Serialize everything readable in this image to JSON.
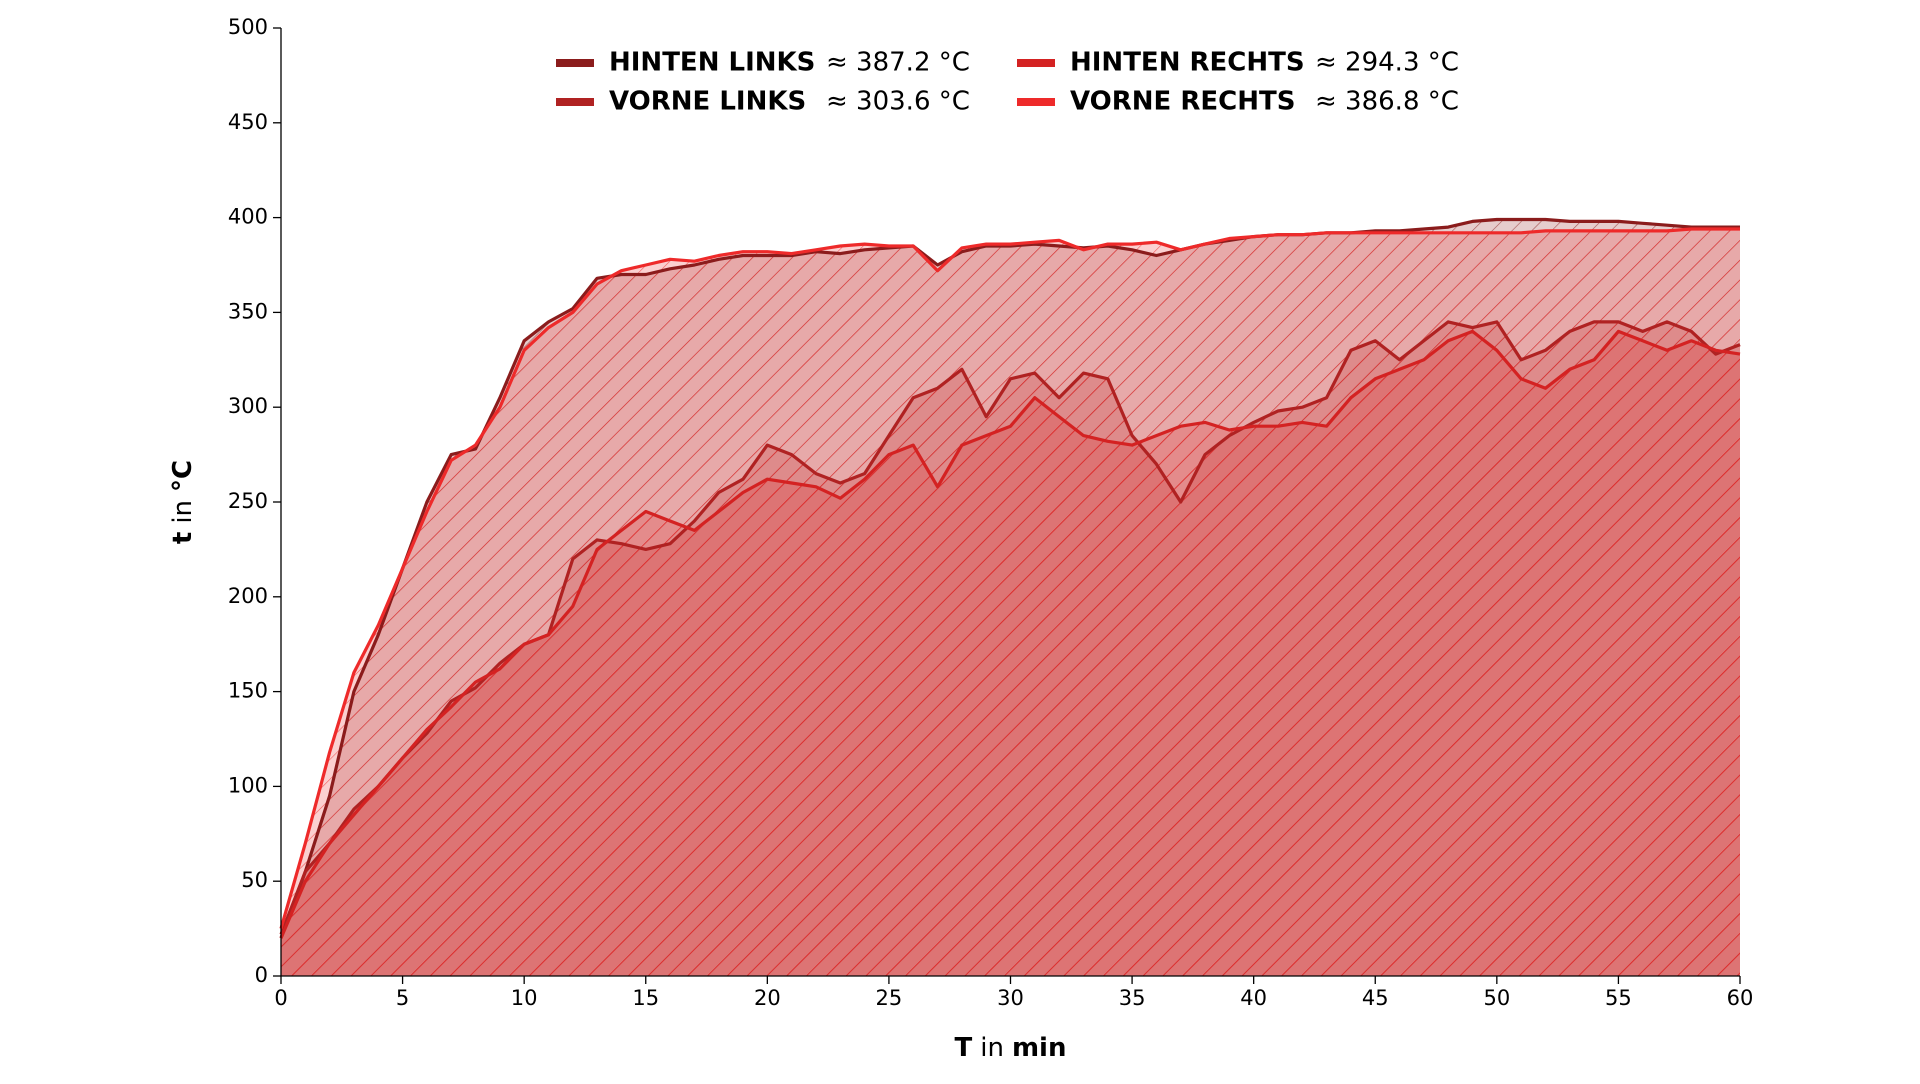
{
  "chart_data": {
    "type": "area",
    "xlabel": [
      "T",
      "in",
      "min"
    ],
    "ylabel": [
      "t",
      "in",
      "°C"
    ],
    "x": [
      0,
      1,
      2,
      3,
      4,
      5,
      6,
      7,
      8,
      9,
      10,
      11,
      12,
      13,
      14,
      15,
      16,
      17,
      18,
      19,
      20,
      21,
      22,
      23,
      24,
      25,
      26,
      27,
      28,
      29,
      30,
      31,
      32,
      33,
      34,
      35,
      36,
      37,
      38,
      39,
      40,
      41,
      42,
      43,
      44,
      45,
      46,
      47,
      48,
      49,
      50,
      51,
      52,
      53,
      54,
      55,
      56,
      57,
      58,
      59,
      60
    ],
    "xlim": [
      0,
      60
    ],
    "xticks": [
      0,
      5,
      10,
      15,
      20,
      25,
      30,
      35,
      40,
      45,
      50,
      55,
      60
    ],
    "ylim": [
      0,
      500
    ],
    "yticks": [
      0,
      50,
      100,
      150,
      200,
      250,
      300,
      350,
      400,
      450,
      500
    ],
    "series": [
      {
        "name": "HINTEN LINKS",
        "legend_value": "≈ 387.2 °C",
        "color": "#8b1c1c",
        "values": [
          20,
          55,
          95,
          150,
          180,
          215,
          250,
          275,
          278,
          305,
          335,
          345,
          352,
          368,
          370,
          370,
          373,
          375,
          378,
          380,
          380,
          380,
          382,
          381,
          383,
          384,
          385,
          375,
          382,
          385,
          385,
          386,
          385,
          384,
          385,
          383,
          380,
          383,
          386,
          388,
          390,
          391,
          391,
          392,
          392,
          393,
          393,
          394,
          395,
          398,
          399,
          399,
          399,
          398,
          398,
          398,
          397,
          396,
          395,
          395,
          395
        ]
      },
      {
        "name": "VORNE LINKS",
        "legend_value": "≈ 303.6 °C",
        "color": "#b02222",
        "values": [
          22,
          55,
          70,
          88,
          100,
          115,
          128,
          145,
          152,
          165,
          175,
          180,
          220,
          230,
          228,
          225,
          228,
          240,
          255,
          262,
          280,
          275,
          265,
          260,
          265,
          285,
          305,
          310,
          320,
          295,
          315,
          318,
          305,
          318,
          315,
          285,
          270,
          250,
          275,
          285,
          292,
          298,
          300,
          305,
          330,
          335,
          325,
          335,
          345,
          342,
          345,
          325,
          330,
          340,
          345,
          345,
          340,
          345,
          340,
          328,
          333
        ]
      },
      {
        "name": "HINTEN RECHTS",
        "legend_value": "≈ 294.3 °C",
        "color": "#d42222",
        "values": [
          20,
          50,
          70,
          85,
          100,
          115,
          130,
          142,
          155,
          162,
          175,
          180,
          195,
          225,
          235,
          245,
          240,
          235,
          245,
          255,
          262,
          260,
          258,
          252,
          262,
          275,
          280,
          258,
          280,
          285,
          290,
          305,
          295,
          285,
          282,
          280,
          285,
          290,
          292,
          288,
          290,
          290,
          292,
          290,
          305,
          315,
          320,
          325,
          335,
          340,
          330,
          315,
          310,
          320,
          325,
          340,
          335,
          330,
          335,
          330,
          328
        ]
      },
      {
        "name": "VORNE RECHTS",
        "legend_value": "≈ 386.8 °C",
        "color": "#ee2a2a",
        "values": [
          25,
          70,
          118,
          160,
          185,
          215,
          245,
          272,
          280,
          300,
          330,
          342,
          350,
          365,
          372,
          375,
          378,
          377,
          380,
          382,
          382,
          381,
          383,
          385,
          386,
          385,
          385,
          372,
          384,
          386,
          386,
          387,
          388,
          383,
          386,
          386,
          387,
          383,
          386,
          389,
          390,
          391,
          391,
          392,
          392,
          392,
          392,
          392,
          392,
          392,
          392,
          392,
          393,
          393,
          393,
          393,
          393,
          393,
          394,
          394,
          394
        ]
      }
    ]
  }
}
